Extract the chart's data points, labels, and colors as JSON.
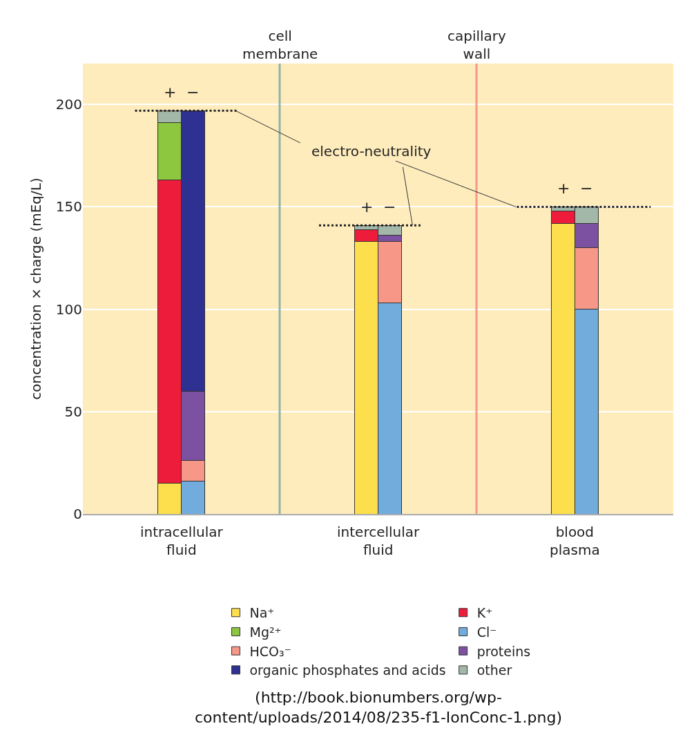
{
  "chart_data": {
    "type": "bar",
    "stacked": true,
    "ylabel": "concentration × charge (mEq/L)",
    "categories": [
      null,
      null,
      null,
      null,
      null,
      null
    ],
    "series": [
      {
        "name": "Na⁺",
        "color": "#fddf4d",
        "values": [
          15,
          null,
          133,
          null,
          142,
          null
        ]
      },
      {
        "name": "K⁺",
        "color": "#ed1c3a",
        "values": [
          148,
          null,
          6,
          null,
          6,
          null
        ]
      },
      {
        "name": "Mg²⁺",
        "color": "#8dc63f",
        "values": [
          28,
          null,
          null,
          null,
          null,
          null
        ]
      },
      {
        "name": "Cl⁻",
        "color": "#72acdd",
        "values": [
          null,
          16,
          null,
          103,
          null,
          100
        ]
      },
      {
        "name": "HCO₃⁻",
        "color": "#f69788",
        "values": [
          null,
          10,
          null,
          30,
          null,
          30
        ]
      },
      {
        "name": "proteins",
        "color": "#7c51a1",
        "values": [
          null,
          34,
          null,
          3,
          null,
          12
        ]
      },
      {
        "name": "organic phosphates and acids",
        "color": "#2e3192",
        "values": [
          null,
          137,
          null,
          null,
          null,
          null
        ]
      },
      {
        "name": "other",
        "color": "#a3b8a8",
        "values": [
          6,
          null,
          2,
          5,
          2,
          8
        ]
      }
    ],
    "ylim": [
      0,
      220
    ],
    "yticks": [
      0,
      50,
      100,
      150,
      200
    ],
    "grid": "y",
    "legend": "bottom",
    "ref_lines": [
      {
        "axis": "y",
        "value": 197,
        "color": "#222222",
        "line_style": "dashed"
      },
      {
        "axis": "y",
        "value": 141,
        "color": "#222222",
        "line_style": "dashed"
      },
      {
        "axis": "y",
        "value": 150,
        "color": "#222222",
        "line_style": "dashed"
      }
    ],
    "annotations": [
      "+",
      "−",
      "+",
      "−",
      "+",
      "−",
      "intracellular fluid",
      "intercellular fluid",
      "blood plasma",
      "cell membrane",
      "capillary wall",
      "electro-neutrality",
      "(http://book.bionumbers.org/wp-content/uploads/2014/08/235-f1-IonConc-1.png)"
    ]
  }
}
